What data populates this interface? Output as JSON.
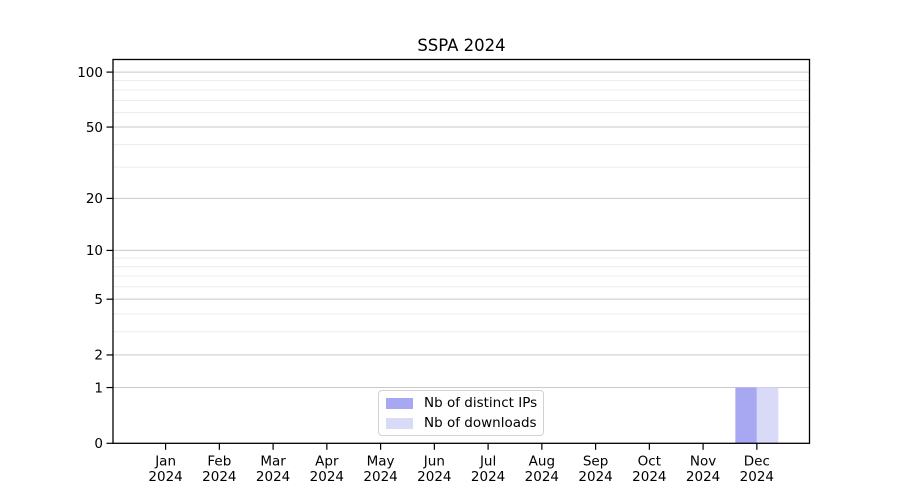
{
  "chart_data": {
    "type": "bar",
    "title": "SSPA 2024",
    "x": [
      "Jan 2024",
      "Feb 2024",
      "Mar 2024",
      "Apr 2024",
      "May 2024",
      "Jun 2024",
      "Jul 2024",
      "Aug 2024",
      "Sep 2024",
      "Oct 2024",
      "Nov 2024",
      "Dec 2024"
    ],
    "series": [
      {
        "name": "Nb of distinct IPs",
        "color": "#a8a8f2",
        "values": [
          0,
          0,
          0,
          0,
          0,
          0,
          0,
          0,
          0,
          0,
          0,
          1
        ]
      },
      {
        "name": "Nb of downloads",
        "color": "#d9d9f8",
        "values": [
          0,
          0,
          0,
          0,
          0,
          0,
          0,
          0,
          0,
          0,
          0,
          1
        ]
      }
    ],
    "xlabel": "",
    "ylabel": "",
    "yscale": "log1p",
    "ylim": [
      0,
      116
    ],
    "y_major_ticks": [
      0,
      1,
      2,
      5,
      10,
      20,
      50,
      100
    ],
    "y_minor_gridlines": [
      3,
      4,
      6,
      7,
      8,
      9,
      30,
      40,
      60,
      70,
      80,
      90
    ],
    "grid": "both",
    "legend_position": "lower center",
    "colors": {
      "background": "#ffffff",
      "frame": "#000000",
      "major_grid": "#c9c9c9",
      "minor_grid": "#ececec",
      "text": "#000000"
    }
  }
}
